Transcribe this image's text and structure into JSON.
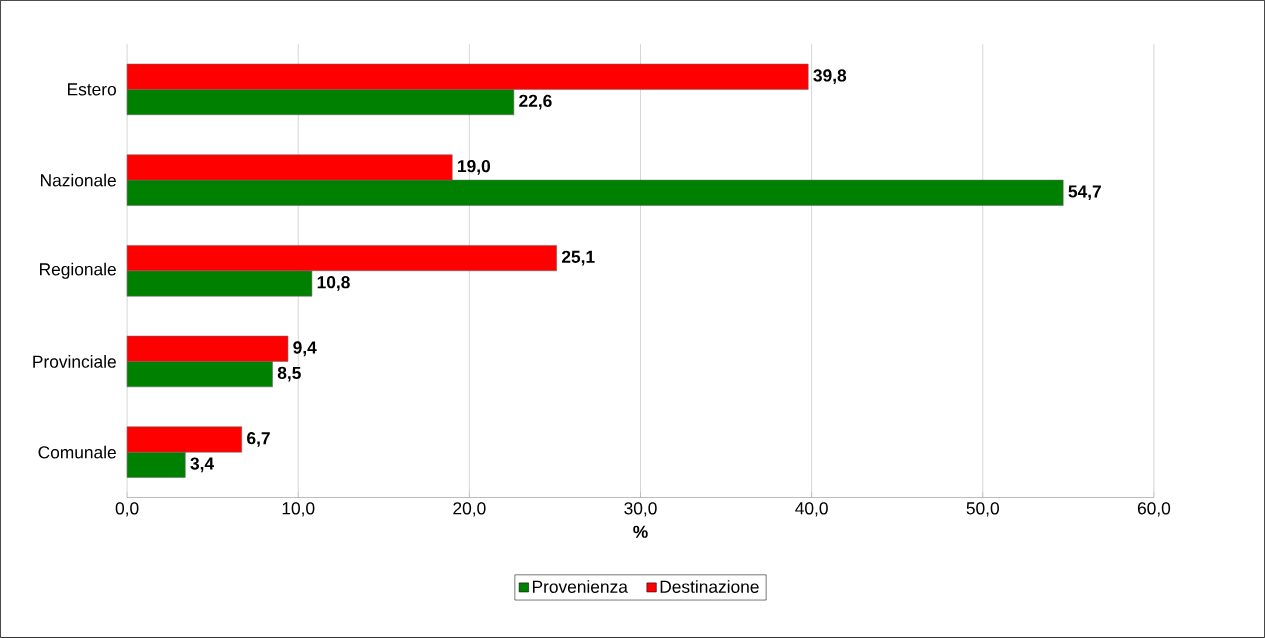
{
  "chart_data": {
    "type": "bar",
    "orientation": "horizontal",
    "xlabel": "%",
    "categories": [
      "Estero",
      "Nazionale",
      "Regionale",
      "Provinciale",
      "Comunale"
    ],
    "series": [
      {
        "name": "Provenienza",
        "color": "#008000",
        "values": [
          22.6,
          54.7,
          10.8,
          8.5,
          3.4
        ],
        "value_labels": [
          "22,6",
          "54,7",
          "10,8",
          "8,5",
          "3,4"
        ]
      },
      {
        "name": "Destinazione",
        "color": "#ff0000",
        "values": [
          39.8,
          19.0,
          25.1,
          9.4,
          6.7
        ],
        "value_labels": [
          "39,8",
          "19,0",
          "25,1",
          "9,4",
          "6,7"
        ]
      }
    ],
    "xlim": [
      0,
      60
    ],
    "xticks": [
      {
        "value": 0,
        "label": "0,0"
      },
      {
        "value": 10,
        "label": "10,0"
      },
      {
        "value": 20,
        "label": "20,0"
      },
      {
        "value": 30,
        "label": "30,0"
      },
      {
        "value": 40,
        "label": "40,0"
      },
      {
        "value": 50,
        "label": "50,0"
      },
      {
        "value": 60,
        "label": "60,0"
      }
    ],
    "grid": "x",
    "legend": "bottom"
  }
}
